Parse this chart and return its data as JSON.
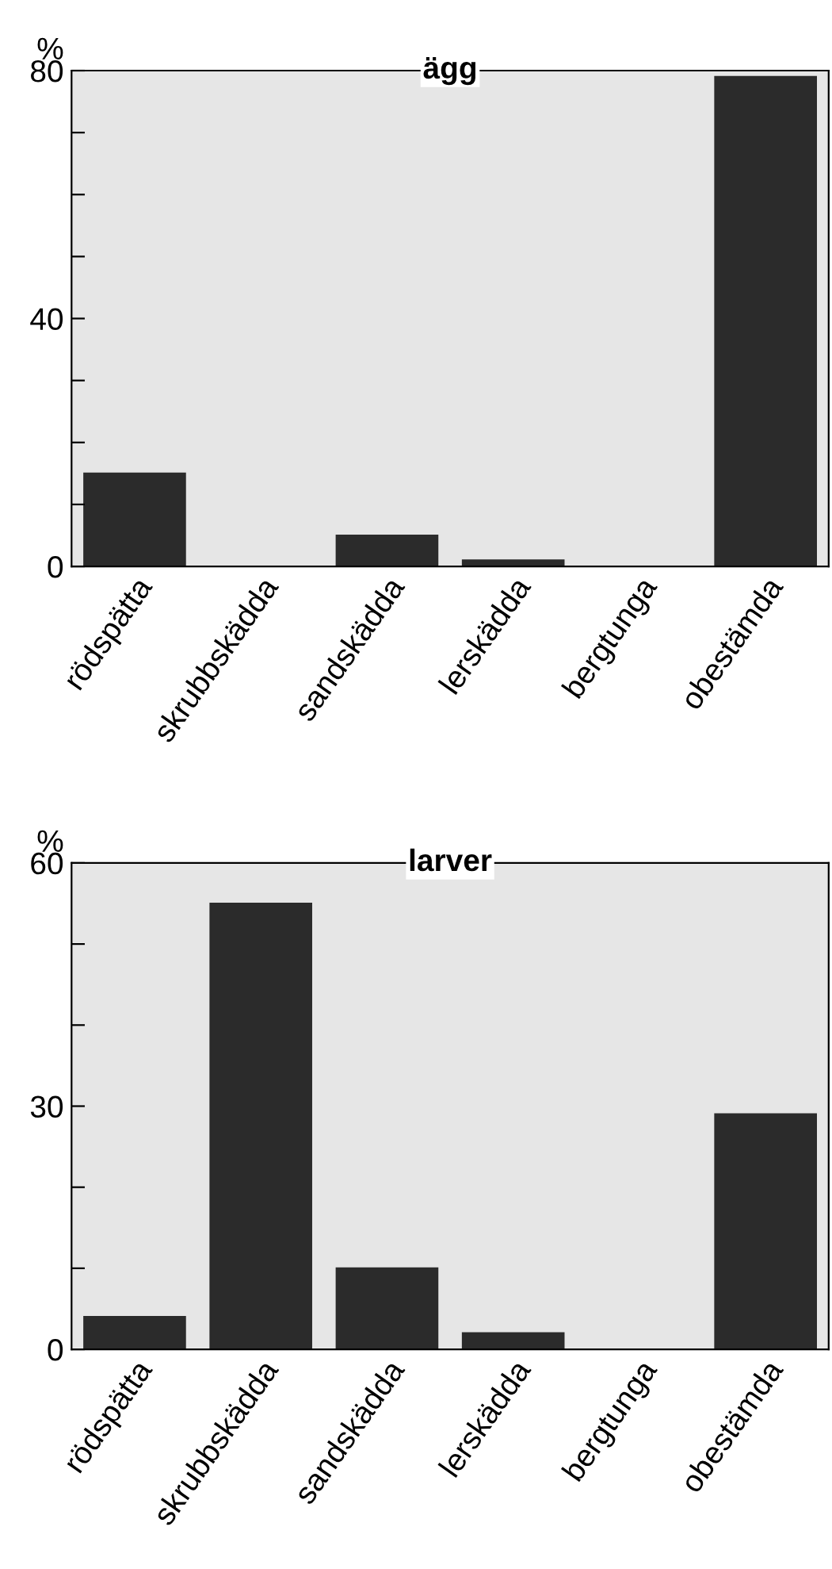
{
  "chart_data": [
    {
      "type": "bar",
      "title": "ägg",
      "ylabel": "%",
      "categories": [
        "rödspätta",
        "skrubbskädda",
        "sandskädda",
        "lerskädda",
        "bergtunga",
        "obestämda"
      ],
      "values": [
        15,
        0,
        5,
        1,
        0,
        79
      ],
      "color": "#2b2b2b",
      "ylim": [
        0,
        80
      ],
      "yticks": [
        0,
        {
          "value": 10,
          "label": null
        },
        {
          "value": 20,
          "label": null
        },
        {
          "value": 30,
          "label": null
        },
        40,
        {
          "value": 50,
          "label": null
        },
        {
          "value": 60,
          "label": null
        },
        {
          "value": 70,
          "label": null
        },
        80
      ],
      "grid": false,
      "legend": false
    },
    {
      "type": "bar",
      "title": "larver",
      "ylabel": "%",
      "categories": [
        "rödspätta",
        "skrubbskädda",
        "sandskädda",
        "lerskädda",
        "bergtunga",
        "obestämda"
      ],
      "values": [
        4,
        55,
        10,
        2,
        0,
        29
      ],
      "color": "#2b2b2b",
      "ylim": [
        0,
        60
      ],
      "yticks": [
        0,
        {
          "value": 10,
          "label": null
        },
        {
          "value": 20,
          "label": null
        },
        30,
        {
          "value": 40,
          "label": null
        },
        {
          "value": 50,
          "label": null
        },
        60
      ],
      "grid": false,
      "legend": false
    }
  ]
}
